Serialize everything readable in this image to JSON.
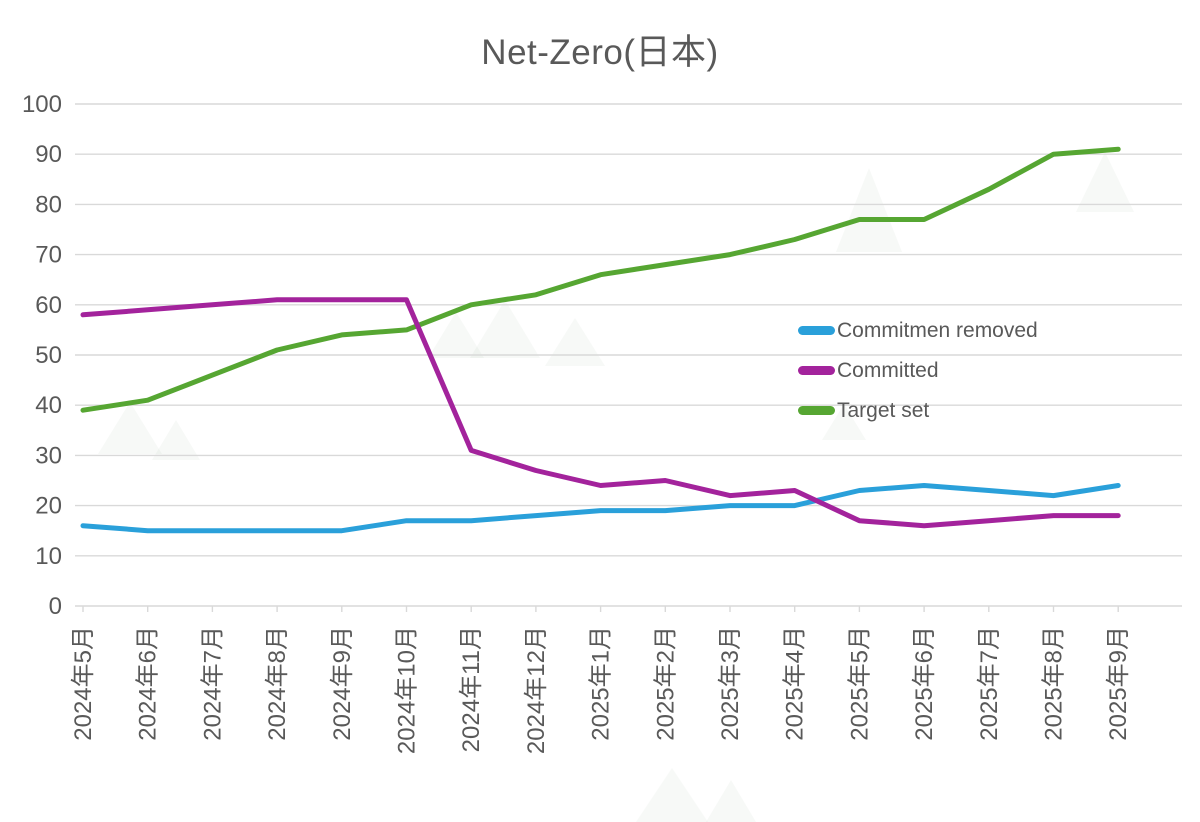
{
  "page": {
    "background": "#ffffff"
  },
  "chart_data": {
    "type": "line",
    "title": "Net-Zero(日本)",
    "categories": [
      "2024年5月",
      "2024年6月",
      "2024年7月",
      "2024年8月",
      "2024年9月",
      "2024年10月",
      "2024年11月",
      "2024年12月",
      "2025年1月",
      "2025年2月",
      "2025年3月",
      "2025年4月",
      "2025年5月",
      "2025年6月",
      "2025年7月",
      "2025年8月",
      "2025年9月"
    ],
    "series": [
      {
        "name": "Commitmen removed",
        "color": "#2AA0DA",
        "values": [
          16,
          15,
          15,
          15,
          15,
          17,
          17,
          18,
          19,
          19,
          20,
          20,
          23,
          24,
          23,
          22,
          24
        ]
      },
      {
        "name": "Committed",
        "color": "#A3239C",
        "values": [
          58,
          59,
          60,
          61,
          61,
          61,
          31,
          27,
          24,
          25,
          22,
          23,
          17,
          16,
          17,
          18,
          18
        ]
      },
      {
        "name": "Target set",
        "color": "#56A632",
        "values": [
          39,
          41,
          46,
          51,
          54,
          55,
          60,
          62,
          66,
          68,
          70,
          73,
          77,
          77,
          83,
          90,
          91
        ]
      }
    ],
    "xlabel": "",
    "ylabel": "",
    "ylim": [
      0,
      100
    ],
    "ytick_step": 10,
    "y_tick_labels": [
      "0",
      "10",
      "20",
      "30",
      "40",
      "50",
      "60",
      "70",
      "80",
      "90",
      "100"
    ],
    "grid": "horizontal-only",
    "legend_position": "inside-right-middle",
    "text_color": "#595959",
    "grid_color": "#D9D9D9"
  }
}
